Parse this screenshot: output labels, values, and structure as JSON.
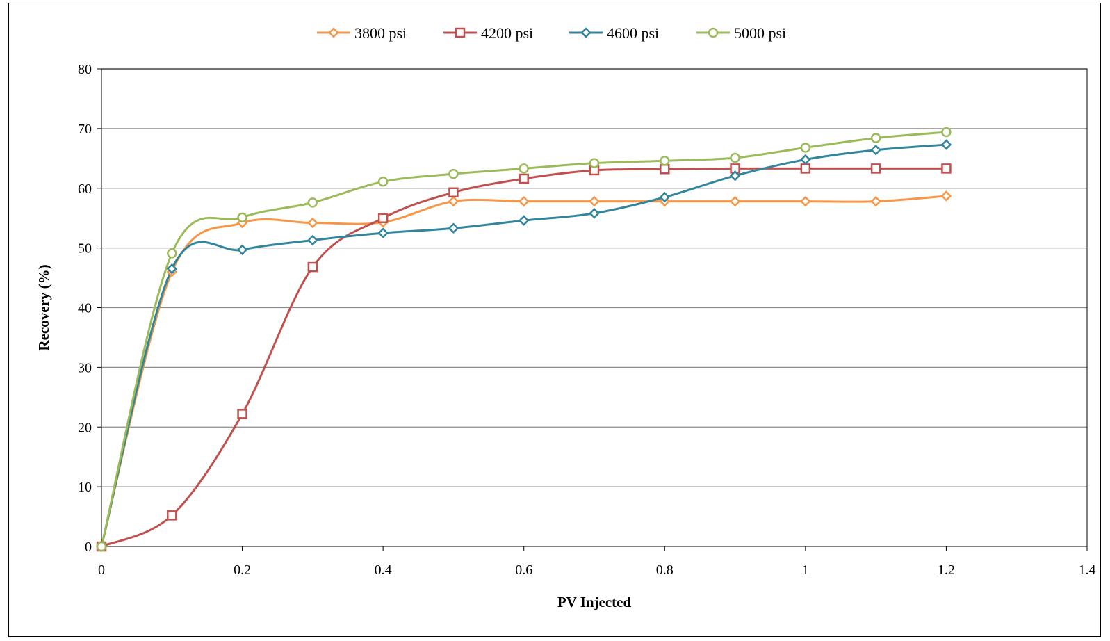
{
  "chart_data": {
    "type": "line",
    "xlabel": "PV Injected",
    "ylabel": "Recovery (%)",
    "xlim": [
      0,
      1.4
    ],
    "ylim": [
      0,
      80
    ],
    "xticks": [
      0,
      0.2,
      0.4,
      0.6,
      0.8,
      1,
      1.2,
      1.4
    ],
    "xtick_labels": [
      "0",
      "0.2",
      "0.4",
      "0.6",
      "0.8",
      "1",
      "1.2",
      "1.4"
    ],
    "yticks": [
      0,
      10,
      20,
      30,
      40,
      50,
      60,
      70,
      80
    ],
    "ytick_labels": [
      "0",
      "10",
      "20",
      "30",
      "40",
      "50",
      "60",
      "70",
      "80"
    ],
    "grid": "horizontal",
    "legend_position": "top",
    "smoothed": true,
    "x": [
      0,
      0.1,
      0.2,
      0.3,
      0.4,
      0.5,
      0.6,
      0.7,
      0.8,
      0.9,
      1.0,
      1.1,
      1.2
    ],
    "series": [
      {
        "name": "3800 psi",
        "color": "#F79646",
        "marker": "diamond",
        "values": [
          0,
          46,
          54.2,
          54.2,
          54.3,
          57.8,
          57.8,
          57.8,
          57.8,
          57.8,
          57.8,
          57.8,
          58.7
        ]
      },
      {
        "name": "4200 psi",
        "color": "#C0504D",
        "marker": "square",
        "values": [
          0,
          5.2,
          22.2,
          46.8,
          55.0,
          59.3,
          61.6,
          63.0,
          63.2,
          63.3,
          63.3,
          63.3,
          63.3
        ]
      },
      {
        "name": "4600 psi",
        "color": "#31859C",
        "marker": "diamond",
        "values": [
          0,
          46.5,
          49.7,
          51.3,
          52.5,
          53.3,
          54.6,
          55.8,
          58.5,
          62.1,
          64.8,
          66.4,
          67.3
        ]
      },
      {
        "name": "5000 psi",
        "color": "#9BBB59",
        "marker": "circle",
        "values": [
          0,
          49.1,
          55.1,
          57.6,
          61.1,
          62.4,
          63.3,
          64.2,
          64.6,
          65.1,
          66.8,
          68.4,
          69.4
        ]
      }
    ]
  }
}
